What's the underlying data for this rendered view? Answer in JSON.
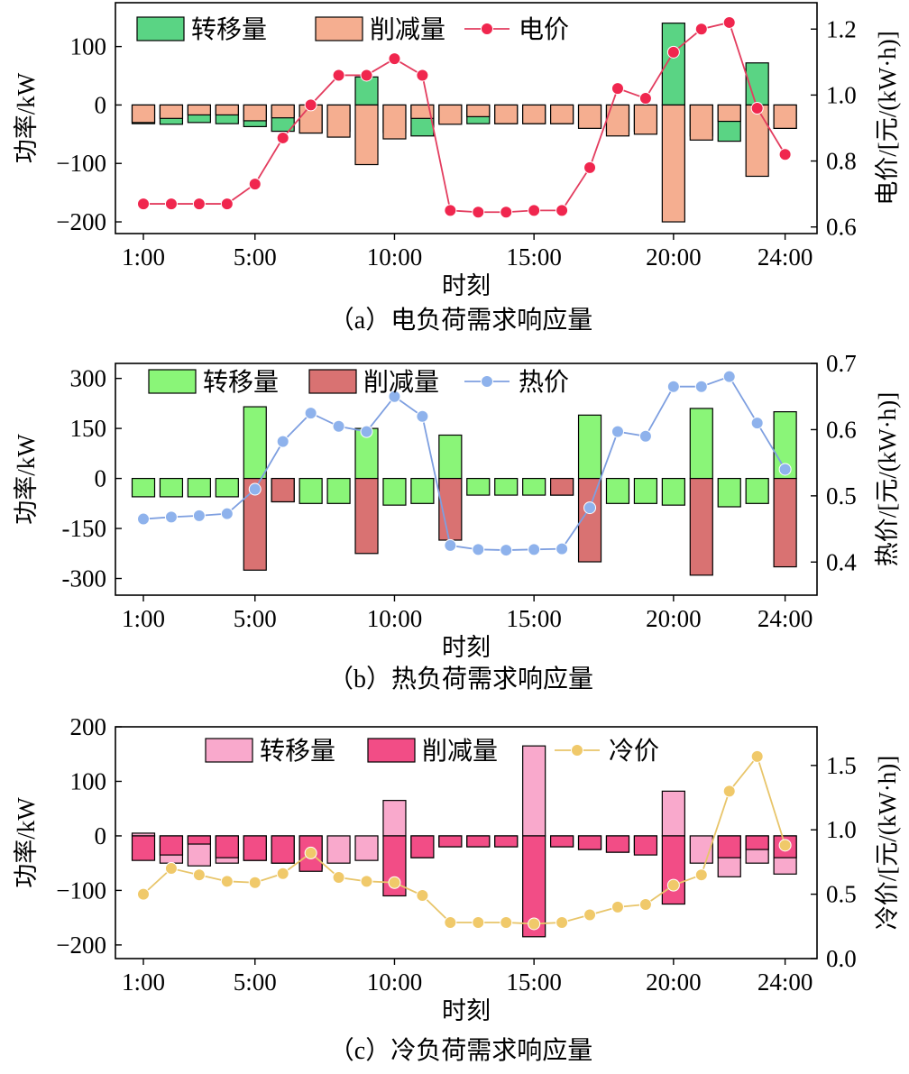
{
  "panels": [
    {
      "caption": "（a）电负荷需求响应量",
      "chart_data": {
        "type": "bar",
        "x_tick_labels": [
          "1:00",
          "5:00",
          "10:00",
          "15:00",
          "20:00",
          "24:00"
        ],
        "xlabel": "时刻",
        "ylabel_left": "功率/kW",
        "ylabel_right": "电价/[元/(kW·h)]",
        "ylim_left": [
          -220,
          175
        ],
        "ylim_right": [
          0.58,
          1.28
        ],
        "yticks_left": [
          -200,
          -100,
          0,
          100
        ],
        "yticks_right": [
          0.6,
          0.8,
          1.0,
          1.2
        ],
        "ytick_labels_left": [
          "−200",
          "−100",
          "0",
          "100"
        ],
        "ytick_labels_right": [
          "0.6",
          "0.8",
          "1.0",
          "1.2"
        ],
        "hours": [
          1,
          2,
          3,
          4,
          5,
          6,
          7,
          8,
          9,
          10,
          11,
          12,
          13,
          14,
          15,
          16,
          17,
          18,
          19,
          20,
          21,
          22,
          23,
          24
        ],
        "series": [
          {
            "name": "转移量",
            "kind": "bar",
            "color": "#5ad484",
            "values": [
              -32,
              -33,
              -30,
              -32,
              -37,
              -45,
              -48,
              -45,
              48,
              -47,
              -53,
              -30,
              -32,
              -32,
              -32,
              -32,
              -37,
              -45,
              -45,
              140,
              -53,
              -62,
              72,
              -40
            ]
          },
          {
            "name": "削减量",
            "kind": "bar",
            "color": "#f5ae90",
            "values": [
              -30,
              -23,
              -17,
              -17,
              -27,
              -22,
              -48,
              -55,
              -102,
              -58,
              -23,
              -33,
              -20,
              -32,
              -32,
              -32,
              -40,
              -53,
              -50,
              -200,
              -60,
              -28,
              -122,
              -40
            ]
          },
          {
            "name": "电价",
            "kind": "line",
            "color": "#e33d5f",
            "marker_color": "#f0264e",
            "values": [
              0.67,
              0.67,
              0.67,
              0.67,
              0.73,
              0.87,
              0.97,
              1.06,
              1.06,
              1.11,
              1.06,
              0.65,
              0.645,
              0.645,
              0.65,
              0.65,
              0.78,
              1.02,
              0.99,
              1.13,
              1.2,
              1.22,
              0.96,
              0.82
            ]
          }
        ],
        "legend": "top"
      }
    },
    {
      "caption": "（b）热负荷需求响应量",
      "chart_data": {
        "type": "bar",
        "x_tick_labels": [
          "1:00",
          "5:00",
          "10:00",
          "15:00",
          "20:00",
          "24:00"
        ],
        "xlabel": "时刻",
        "ylabel_left": "功率/kW",
        "ylabel_right": "热价/[元/(kW·h)]",
        "ylim_left": [
          -350,
          345
        ],
        "ylim_right": [
          0.35,
          0.7
        ],
        "yticks_left": [
          -300,
          -150,
          0,
          150,
          300
        ],
        "yticks_right": [
          0.4,
          0.5,
          0.6,
          0.7
        ],
        "ytick_labels_left": [
          "-300",
          "-150",
          "0",
          "150",
          "300"
        ],
        "ytick_labels_right": [
          "0.4",
          "0.5",
          "0.6",
          "0.7"
        ],
        "hours": [
          1,
          2,
          3,
          4,
          5,
          6,
          7,
          8,
          9,
          10,
          11,
          12,
          13,
          14,
          15,
          16,
          17,
          18,
          19,
          20,
          21,
          22,
          23,
          24
        ],
        "series": [
          {
            "name": "转移量",
            "kind": "bar",
            "color": "#8af578",
            "values": [
              -55,
              -55,
              -55,
              -55,
              215,
              -70,
              -75,
              -75,
              150,
              -80,
              -75,
              130,
              -50,
              -50,
              -50,
              -50,
              190,
              -75,
              -75,
              -80,
              210,
              -85,
              -75,
              200
            ]
          },
          {
            "name": "削减量",
            "kind": "bar",
            "color": "#d97272",
            "values": [
              0,
              0,
              0,
              0,
              -275,
              -70,
              0,
              0,
              -225,
              0,
              0,
              -185,
              0,
              0,
              0,
              -50,
              -250,
              0,
              0,
              0,
              -290,
              0,
              0,
              -265
            ]
          },
          {
            "name": "热价",
            "kind": "line",
            "color": "#7e9fe0",
            "marker_color": "#8eb2ec",
            "values": [
              0.465,
              0.468,
              0.47,
              0.473,
              0.51,
              0.582,
              0.625,
              0.605,
              0.597,
              0.65,
              0.62,
              0.425,
              0.419,
              0.418,
              0.419,
              0.42,
              0.482,
              0.597,
              0.59,
              0.665,
              0.665,
              0.68,
              0.61,
              0.54
            ]
          }
        ],
        "legend": "top"
      }
    },
    {
      "caption": "（c）冷负荷需求响应量",
      "chart_data": {
        "type": "bar",
        "x_tick_labels": [
          "1:00",
          "5:00",
          "10:00",
          "15:00",
          "20:00",
          "24:00"
        ],
        "xlabel": "时刻",
        "ylabel_left": "功率/kW",
        "ylabel_right": "冷价/[元/(kW·h)]",
        "ylim_left": [
          -225,
          200
        ],
        "ylim_right": [
          0.0,
          1.8
        ],
        "yticks_left": [
          -200,
          -100,
          0,
          100,
          200
        ],
        "yticks_right": [
          0.0,
          0.5,
          1.0,
          1.5
        ],
        "ytick_labels_left": [
          "−200",
          "−100",
          "0",
          "100",
          "200"
        ],
        "ytick_labels_right": [
          "0.0",
          "0.5",
          "1.0",
          "1.5"
        ],
        "hours": [
          1,
          2,
          3,
          4,
          5,
          6,
          7,
          8,
          9,
          10,
          11,
          12,
          13,
          14,
          15,
          16,
          17,
          18,
          19,
          20,
          21,
          22,
          23,
          24
        ],
        "series": [
          {
            "name": "转移量",
            "kind": "bar",
            "color": "#f9a9cc",
            "values": [
              5,
              -50,
              -55,
              -50,
              -45,
              -50,
              -60,
              -50,
              -45,
              65,
              -40,
              -20,
              -20,
              -20,
              165,
              -20,
              -25,
              -30,
              -30,
              82,
              -50,
              -75,
              -50,
              -70
            ]
          },
          {
            "name": "削减量",
            "kind": "bar",
            "color": "#f24d86",
            "values": [
              -45,
              -35,
              -15,
              -40,
              -45,
              -50,
              -65,
              0,
              0,
              -110,
              -40,
              -20,
              -20,
              -20,
              -185,
              -20,
              -25,
              -30,
              -35,
              -125,
              0,
              -40,
              -25,
              -40
            ]
          },
          {
            "name": "冷价",
            "kind": "line",
            "color": "#e8c56a",
            "marker_color": "#f0c96a",
            "values": [
              0.5,
              0.7,
              0.65,
              0.6,
              0.59,
              0.66,
              0.82,
              0.63,
              0.6,
              0.59,
              0.49,
              0.28,
              0.28,
              0.28,
              0.27,
              0.28,
              0.34,
              0.4,
              0.42,
              0.57,
              0.65,
              1.3,
              1.57,
              0.88
            ]
          }
        ],
        "legend": "top"
      }
    }
  ]
}
